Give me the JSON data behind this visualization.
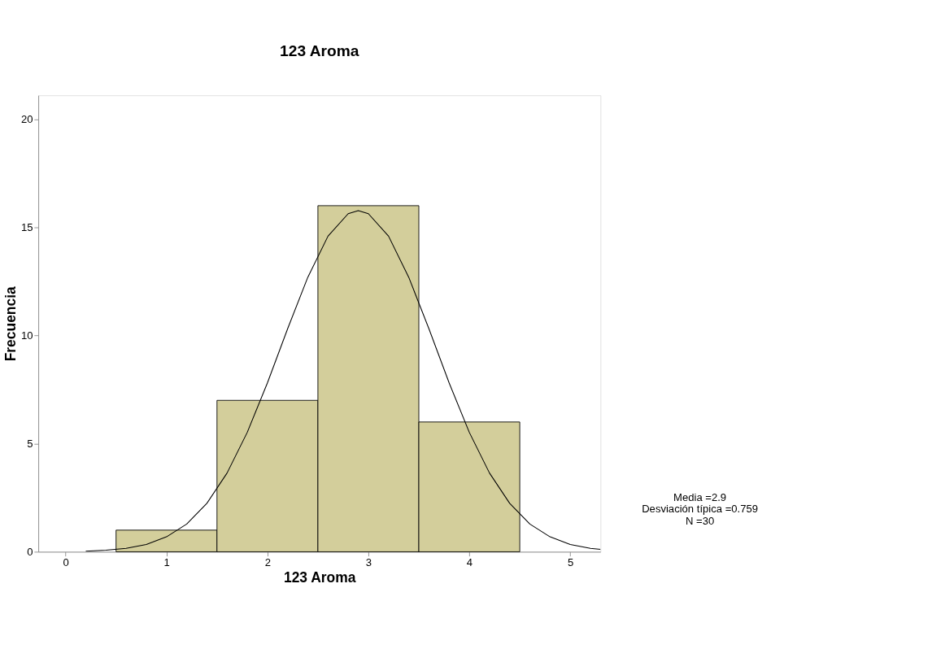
{
  "chart_data": {
    "type": "histogram",
    "title": "123 Aroma",
    "xlabel": "123 Aroma",
    "ylabel": "Frecuencia",
    "bins": [
      0.5,
      1.5,
      2.5,
      3.5,
      4.5
    ],
    "values": [
      1,
      7,
      16,
      6
    ],
    "color": "#d3ce9b",
    "series": [
      {
        "type": "line",
        "color": "#000000",
        "x": [
          0.2,
          0.4,
          0.6,
          0.8,
          1.0,
          1.2,
          1.4,
          1.6,
          1.8,
          2.0,
          2.2,
          2.4,
          2.6,
          2.8,
          2.9,
          3.0,
          3.2,
          3.4,
          3.6,
          3.8,
          4.0,
          4.2,
          4.4,
          4.6,
          4.8,
          5.0,
          5.2,
          5.3
        ],
        "values": [
          0.03,
          0.07,
          0.16,
          0.34,
          0.69,
          1.28,
          2.24,
          3.64,
          5.52,
          7.81,
          10.31,
          12.69,
          14.59,
          15.63,
          15.77,
          15.63,
          14.59,
          12.69,
          10.31,
          7.81,
          5.52,
          3.64,
          2.24,
          1.28,
          0.69,
          0.34,
          0.16,
          0.11
        ]
      }
    ],
    "xlim": [
      -0.27,
      5.3
    ],
    "xticks": [
      0,
      1,
      2,
      3,
      4,
      5
    ],
    "ylim": [
      0,
      21.1
    ],
    "yticks": [
      0,
      5,
      10,
      15,
      20
    ],
    "grid": false,
    "annotations": [
      "Media =2.9",
      "Desviación típica =0.759",
      "N =30"
    ]
  }
}
